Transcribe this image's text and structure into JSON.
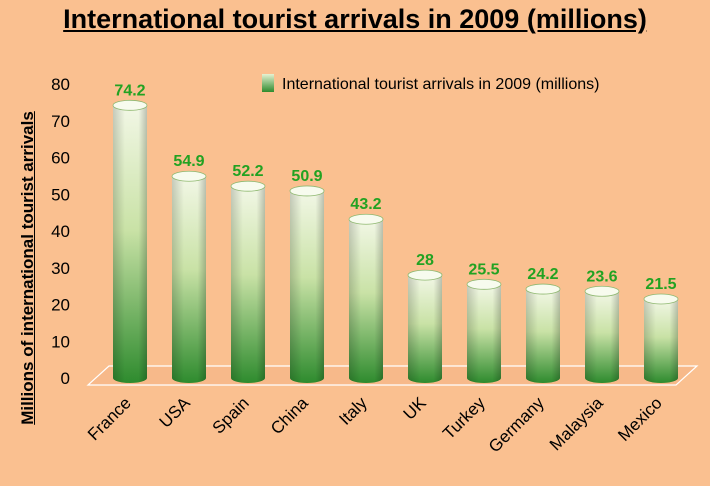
{
  "chart_data": {
    "type": "bar",
    "title": "International tourist arrivals in 2009 (millions)",
    "ylabel": "Millions of international tourist arrivals",
    "xlabel": "",
    "categories": [
      "France",
      "USA",
      "Spain",
      "China",
      "Italy",
      "UK",
      "Turkey",
      "Germany",
      "Malaysia",
      "Mexico"
    ],
    "series": [
      {
        "name": "International tourist arrivals in 2009 (millions)",
        "values": [
          74.2,
          54.9,
          52.2,
          50.9,
          43.2,
          28,
          25.5,
          24.2,
          23.6,
          21.5
        ]
      }
    ],
    "ylim": [
      0,
      80
    ],
    "yticks": [
      0,
      10,
      20,
      30,
      40,
      50,
      60,
      70,
      80
    ],
    "grid": false,
    "legend_position": "top-right",
    "bar_shape": "cylinder",
    "colors": {
      "background": "#FAC090",
      "bar_dark": "#2E8B2E",
      "bar_light": "#F2F7E6",
      "data_label": "#22A222"
    }
  }
}
